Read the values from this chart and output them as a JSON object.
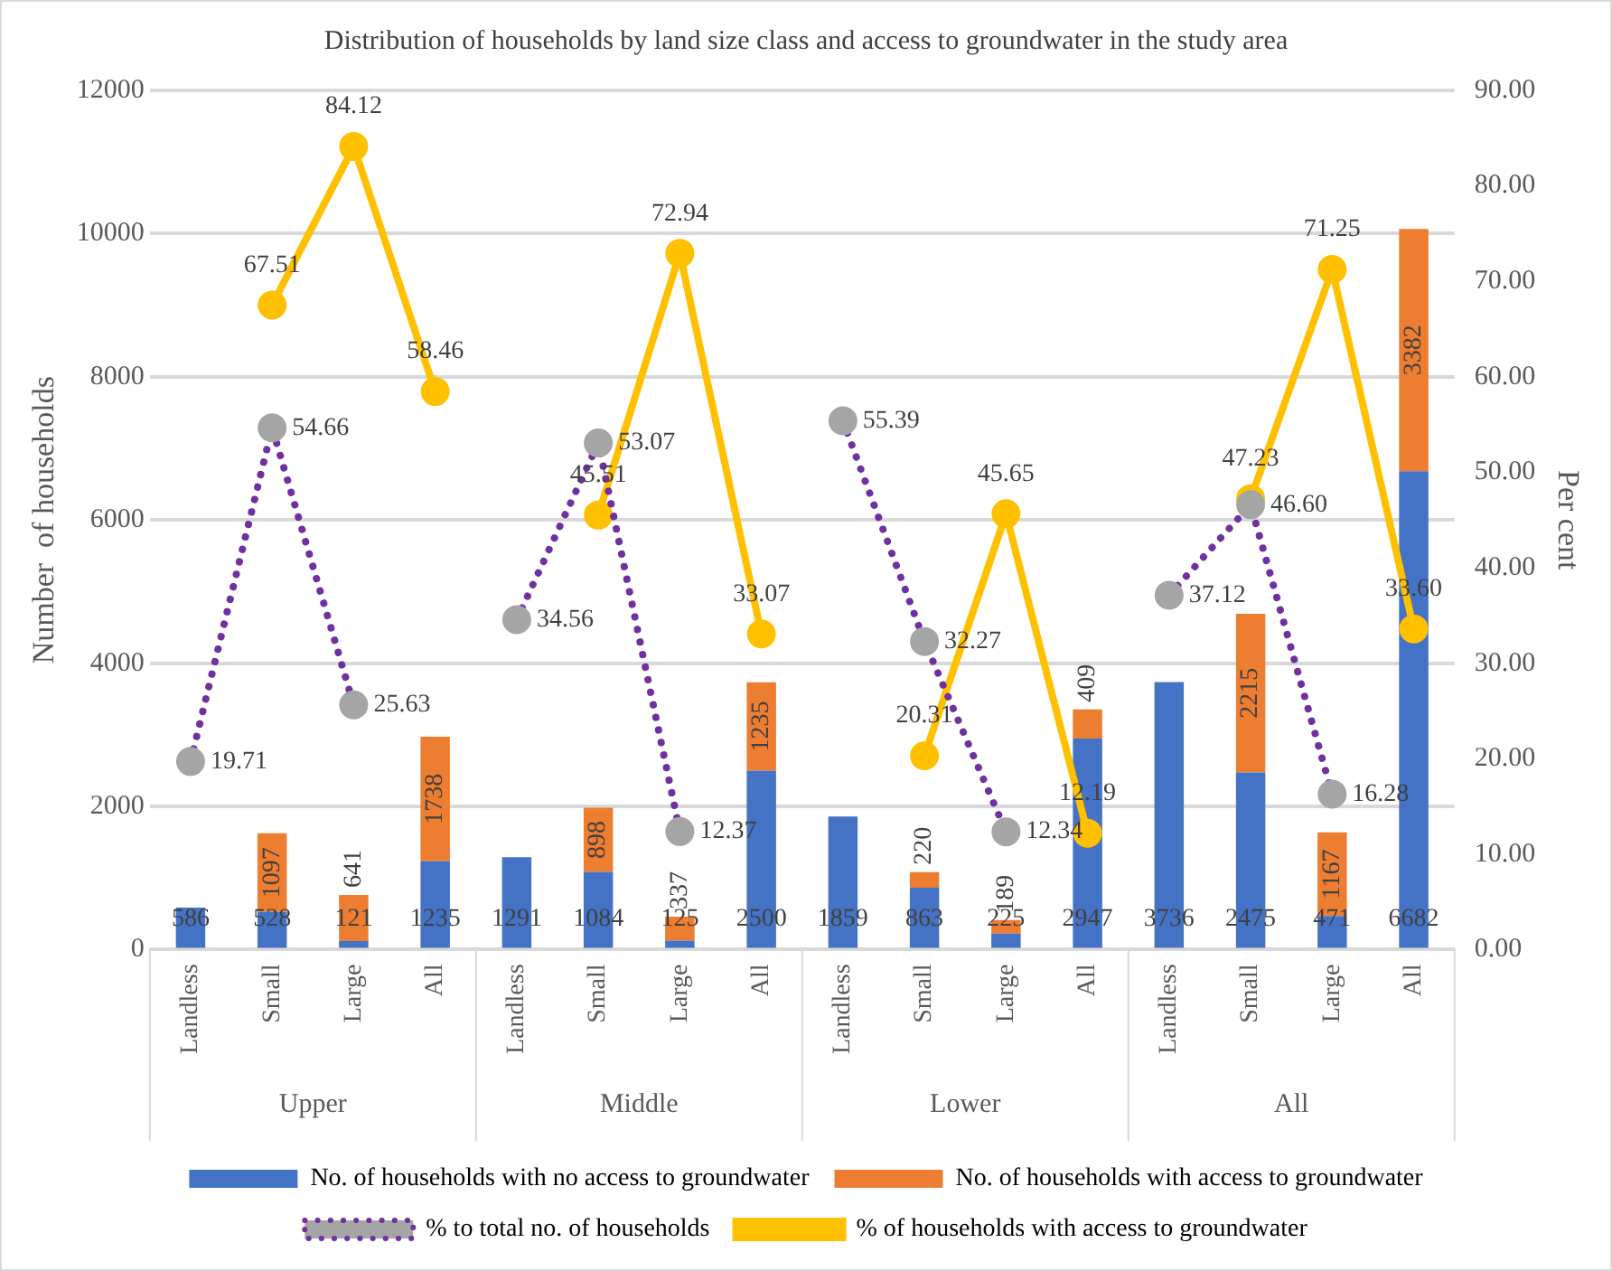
{
  "chart_data": {
    "type": "bar",
    "title": "Distribution of households by land size class and access to groundwater in the study area",
    "ylabel": "Number  of households",
    "y2label": "Per cent",
    "categories": [
      "Landless",
      "Small",
      "Large",
      "All",
      "Landless",
      "Small",
      "Large",
      "All",
      "Landless",
      "Small",
      "Large",
      "All",
      "Landless",
      "Small",
      "Large",
      "All"
    ],
    "annotations": [
      "Upper",
      "Middle",
      "Lower",
      "All"
    ],
    "stacked": true,
    "grid": "y",
    "legend": "bottom",
    "marker": "circle",
    "ylim": [
      0,
      12000
    ],
    "yticks": [
      0,
      2000,
      4000,
      6000,
      8000,
      10000,
      12000
    ],
    "y2lim": [
      0,
      90
    ],
    "y2ticks": [
      {
        "value": 0,
        "label": "0.00"
      },
      {
        "value": 10,
        "label": "10.00"
      },
      {
        "value": 20,
        "label": "20.00"
      },
      {
        "value": 30,
        "label": "30.00"
      },
      {
        "value": 40,
        "label": "40.00"
      },
      {
        "value": 50,
        "label": "50.00"
      },
      {
        "value": 60,
        "label": "60.00"
      },
      {
        "value": 70,
        "label": "70.00"
      },
      {
        "value": 80,
        "label": "80.00"
      },
      {
        "value": 90,
        "label": "90.00"
      }
    ],
    "series": [
      {
        "name": "No. of households with no access to groundwater",
        "color": "#4472c4",
        "values": [
          586,
          528,
          121,
          1235,
          1291,
          1084,
          125,
          2500,
          1859,
          863,
          225,
          2947,
          3736,
          2475,
          471,
          6682
        ],
        "value_labels": [
          "586",
          "528",
          "121",
          "1235",
          "1291",
          "1084",
          "125",
          "2500",
          "1859",
          "863",
          "225",
          "2947",
          "3736",
          "2475",
          "471",
          "6682"
        ]
      },
      {
        "name": "No. of households with access to groundwater",
        "color": "#ed7d31",
        "values": [
          null,
          1097,
          641,
          1738,
          null,
          898,
          337,
          1235,
          null,
          220,
          189,
          409,
          null,
          2215,
          1167,
          3382
        ],
        "value_labels": [
          null,
          "1097",
          "641",
          "1738",
          null,
          "898",
          "337",
          "1235",
          null,
          "220",
          "189",
          "409",
          null,
          "2215",
          "1167",
          "3382"
        ]
      },
      {
        "name": "% to total no. of households",
        "type": "line",
        "axis": "y2",
        "line_style": "dotted",
        "color": "#7030a0",
        "colors": [
          "#a5a5a5",
          "#a5a5a5",
          "#a5a5a5",
          "#a5a5a5",
          "#a5a5a5",
          "#a5a5a5",
          "#a5a5a5",
          "#a5a5a5",
          "#a5a5a5",
          "#a5a5a5",
          "#a5a5a5",
          "#a5a5a5",
          "#a5a5a5",
          "#a5a5a5",
          "#a5a5a5",
          "#a5a5a5"
        ],
        "values": [
          19.71,
          54.66,
          25.63,
          null,
          34.56,
          53.07,
          12.37,
          null,
          55.39,
          32.27,
          12.34,
          null,
          37.12,
          46.6,
          16.28,
          null
        ],
        "value_labels": [
          "19.71",
          "54.66",
          "25.63",
          null,
          "34.56",
          "53.07",
          "12.37",
          null,
          "55.39",
          "32.27",
          "12.34",
          null,
          "37.12",
          "46.60",
          "16.28",
          null
        ]
      },
      {
        "name": "% of households with access to groundwater",
        "type": "line",
        "axis": "y2",
        "line_style": "solid",
        "color": "#ffc000",
        "values": [
          null,
          67.51,
          84.12,
          58.46,
          null,
          45.51,
          72.94,
          33.07,
          null,
          20.31,
          45.65,
          12.19,
          null,
          47.23,
          71.25,
          33.6
        ],
        "value_labels": [
          null,
          "67.51",
          "84.12",
          "58.46",
          null,
          "45.51",
          "72.94",
          "33.07",
          null,
          "20.31",
          "45.65",
          "12.19",
          null,
          "47.23",
          "71.25",
          "33.60"
        ]
      }
    ]
  }
}
